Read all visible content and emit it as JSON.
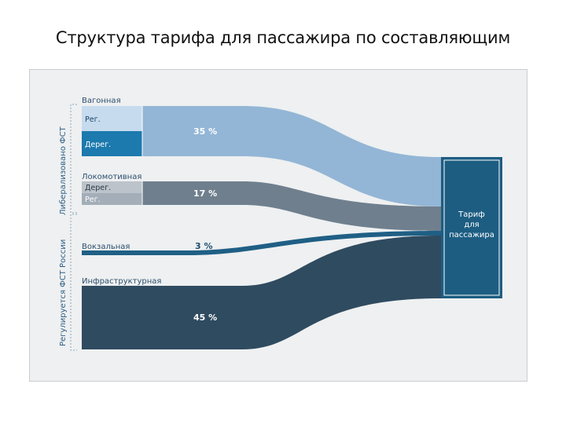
{
  "title": "Структура тарифа для пассажира по составляющим",
  "side_labels": {
    "top": "Либерализовано ФСТ",
    "bottom": "Регулируется ФСТ России"
  },
  "categories": {
    "wagon": {
      "name": "Вагонная",
      "seg1": "Рег.",
      "seg2": "Дерег.",
      "percent": "35 %"
    },
    "loco": {
      "name": "Локомотивная",
      "seg1": "Дерег.",
      "seg2": "Рег.",
      "percent": "17 %"
    },
    "station": {
      "name": "Вокзальная",
      "percent": "3 %"
    },
    "infra": {
      "name": "Инфраструктурная",
      "percent": "45 %"
    }
  },
  "target": {
    "line1": "Тариф",
    "line2": "для",
    "line3": "пассажира"
  },
  "chart_data": {
    "type": "sankey",
    "title": "Структура тарифа для пассажира по составляющим",
    "target": "Тариф для пассажира",
    "flows": [
      {
        "source": "Вагонная",
        "value": 35
      },
      {
        "source": "Локомотивная",
        "value": 17
      },
      {
        "source": "Вокзальная",
        "value": 3
      },
      {
        "source": "Инфраструктурная",
        "value": 45
      }
    ]
  },
  "colors": {
    "wagon": "#93b6d6",
    "wagon_reg": "#c6dbee",
    "wagon_dereg": "#1c7aae",
    "loco": "#6f7f8e",
    "loco_dereg": "#bcc3ca",
    "loco_reg": "#a3aeb8",
    "station": "#1f5f85",
    "infra": "#2f4b60",
    "target": "#1d5d82",
    "panel": "#eef0f1"
  }
}
